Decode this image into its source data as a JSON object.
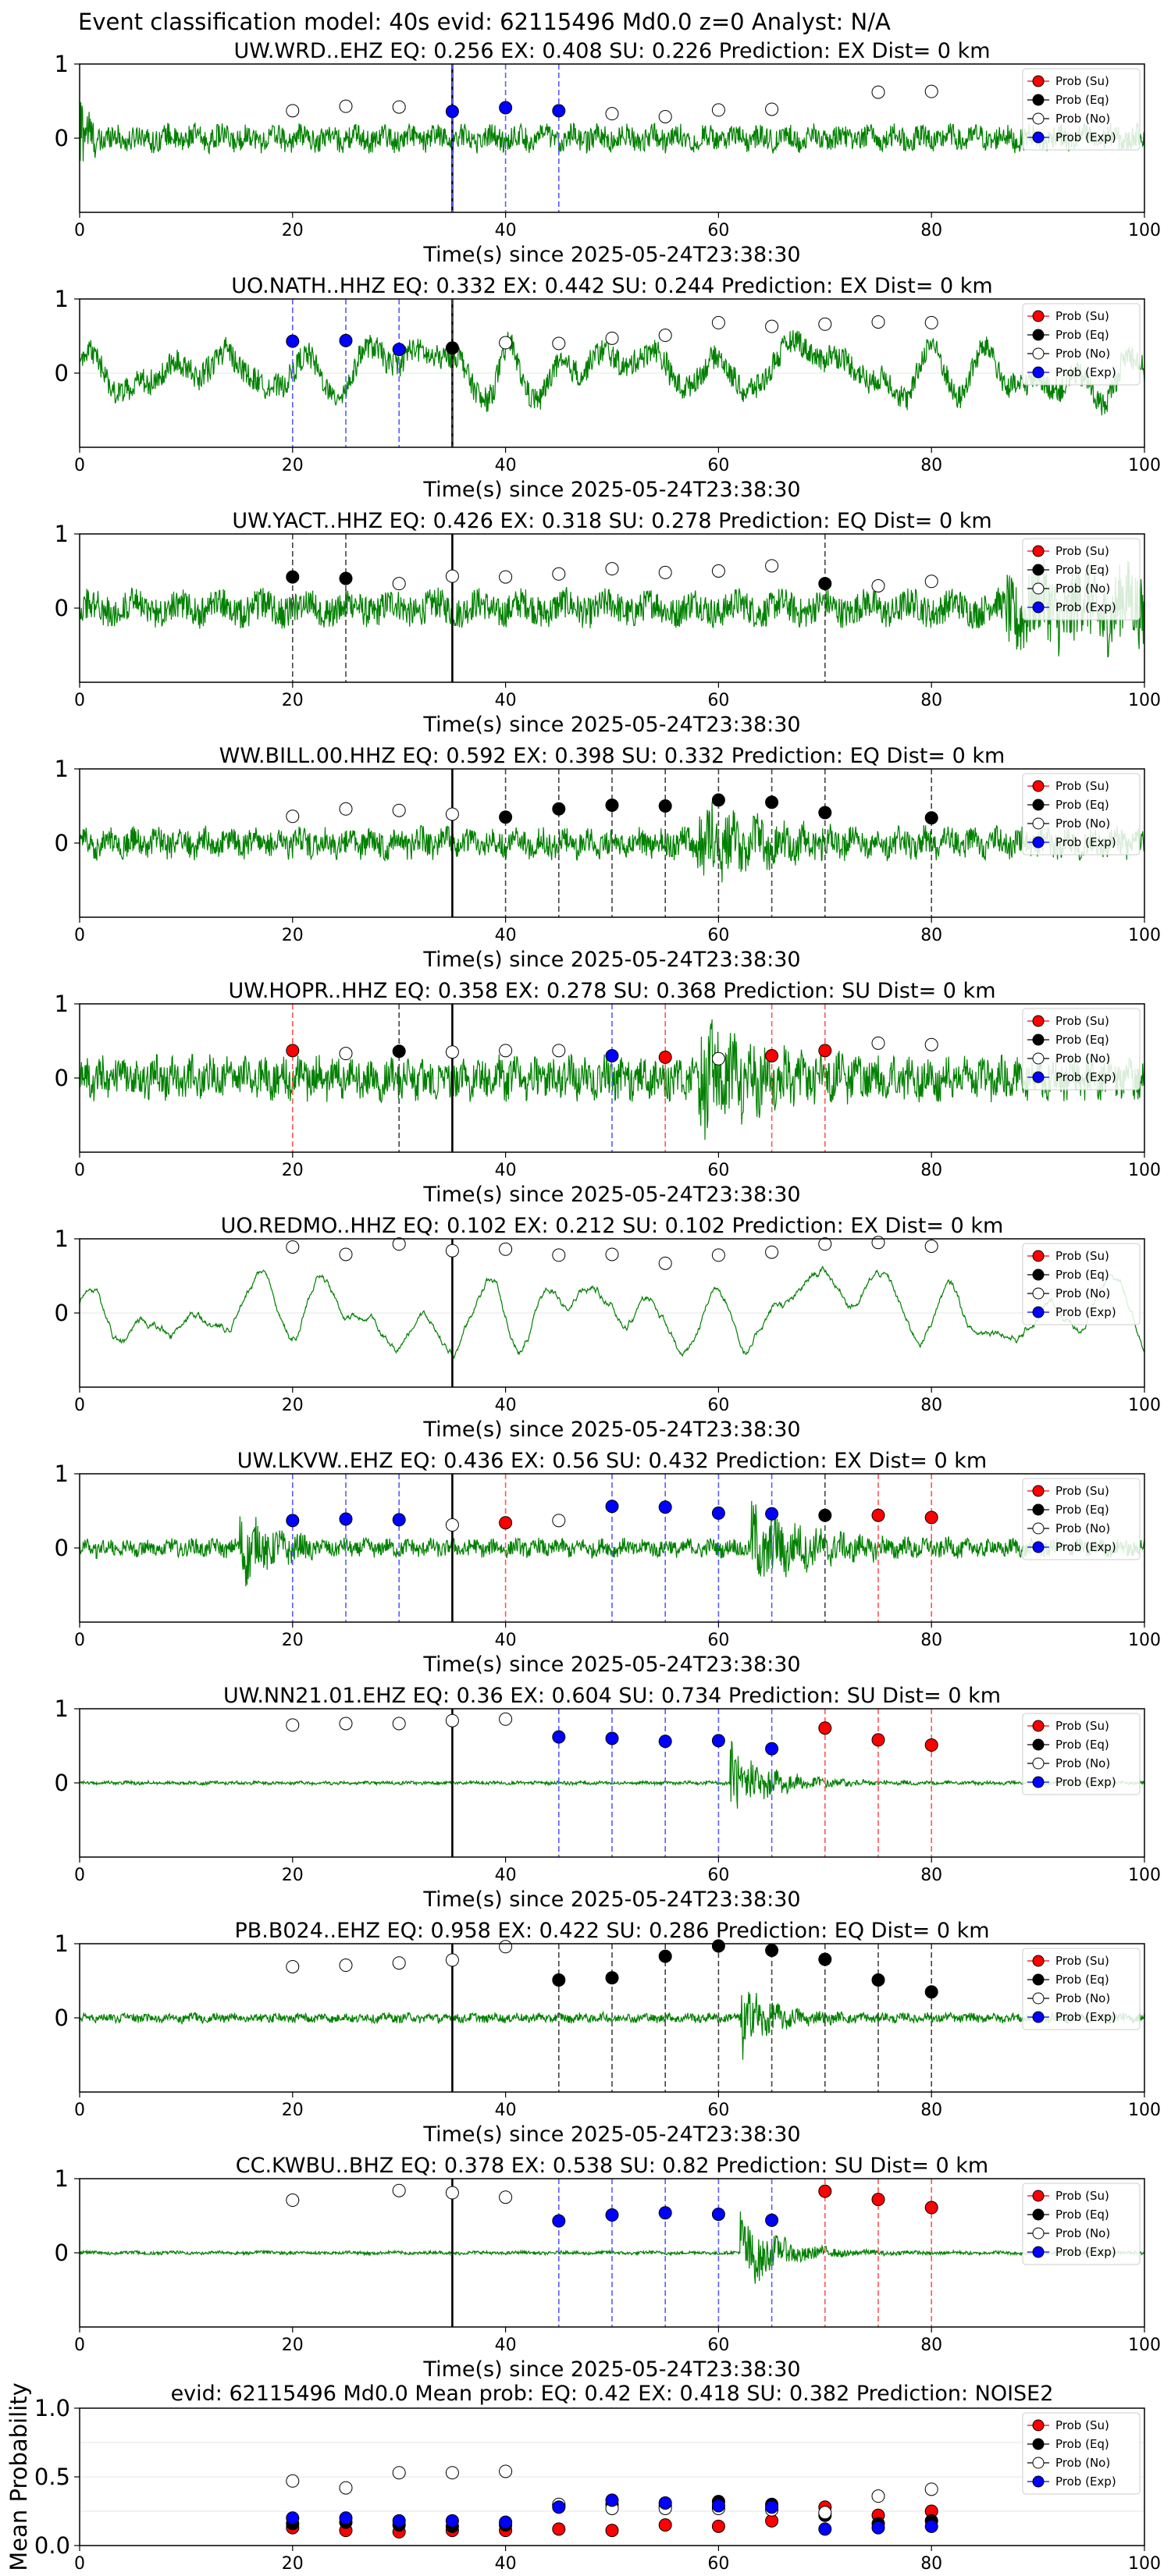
{
  "figure_title": "Event classification model: 40s evid: 62115496 Md0.0 z=0 Analyst: N/A",
  "legend": [
    "Prob (Su)",
    "Prob (Eq)",
    "Prob (No)",
    "Prob (Exp)"
  ],
  "colors": {
    "su": "#ff0000",
    "eq": "#000000",
    "no": "#ffffff",
    "exp": "#0000ff",
    "trace": "#008000"
  },
  "chart_data": [
    {
      "type": "line",
      "title": "UW.WRD..EHZ   EQ: 0.256  EX: 0.408  SU: 0.226   Prediction: EX    Dist= 0 km",
      "xlabel": "Time(s) since 2025-05-24T23:38:30",
      "xlim": [
        0,
        100
      ],
      "ylim": [
        -1,
        1
      ],
      "yticks": [
        0,
        1
      ],
      "xticks": [
        0,
        20,
        40,
        60,
        80,
        100
      ],
      "pick": 35,
      "amplitude": 0.22,
      "freq": 0.8,
      "onset": 0,
      "env": "decay",
      "points": [
        {
          "x": 20,
          "y": 0.37,
          "c": "no"
        },
        {
          "x": 25,
          "y": 0.43,
          "c": "no"
        },
        {
          "x": 30,
          "y": 0.42,
          "c": "no"
        },
        {
          "x": 35,
          "y": 0.36,
          "c": "exp"
        },
        {
          "x": 40,
          "y": 0.41,
          "c": "exp"
        },
        {
          "x": 45,
          "y": 0.37,
          "c": "exp"
        },
        {
          "x": 50,
          "y": 0.33,
          "c": "no"
        },
        {
          "x": 55,
          "y": 0.29,
          "c": "no"
        },
        {
          "x": 60,
          "y": 0.38,
          "c": "no"
        },
        {
          "x": 65,
          "y": 0.39,
          "c": "no"
        },
        {
          "x": 75,
          "y": 0.62,
          "c": "no"
        },
        {
          "x": 80,
          "y": 0.63,
          "c": "no"
        }
      ]
    },
    {
      "type": "line",
      "title": "UO.NATH..HHZ   EQ: 0.332  EX: 0.442  SU: 0.244   Prediction: EX    Dist= 0 km",
      "xlabel": "Time(s) since 2025-05-24T23:38:30",
      "xlim": [
        0,
        100
      ],
      "ylim": [
        -1,
        1
      ],
      "yticks": [
        0,
        1
      ],
      "xticks": [
        0,
        20,
        40,
        60,
        80,
        100
      ],
      "pick": 35,
      "amplitude": 0.6,
      "freq": 0.3,
      "onset": 0,
      "env": "flat",
      "points": [
        {
          "x": 20,
          "y": 0.43,
          "c": "exp"
        },
        {
          "x": 25,
          "y": 0.44,
          "c": "exp"
        },
        {
          "x": 30,
          "y": 0.32,
          "c": "exp"
        },
        {
          "x": 35,
          "y": 0.34,
          "c": "eq"
        },
        {
          "x": 40,
          "y": 0.41,
          "c": "no"
        },
        {
          "x": 45,
          "y": 0.4,
          "c": "no"
        },
        {
          "x": 50,
          "y": 0.47,
          "c": "no"
        },
        {
          "x": 55,
          "y": 0.51,
          "c": "no"
        },
        {
          "x": 60,
          "y": 0.68,
          "c": "no"
        },
        {
          "x": 65,
          "y": 0.63,
          "c": "no"
        },
        {
          "x": 70,
          "y": 0.66,
          "c": "no"
        },
        {
          "x": 75,
          "y": 0.69,
          "c": "no"
        },
        {
          "x": 80,
          "y": 0.68,
          "c": "no"
        }
      ]
    },
    {
      "type": "line",
      "title": "UW.YACT..HHZ   EQ: 0.426  EX: 0.318  SU: 0.278   Prediction: EQ    Dist= 0 km",
      "xlabel": "Time(s) since 2025-05-24T23:38:30",
      "xlim": [
        0,
        100
      ],
      "ylim": [
        -1,
        1
      ],
      "yticks": [
        0,
        1
      ],
      "xticks": [
        0,
        20,
        40,
        60,
        80,
        100
      ],
      "pick": 35,
      "amplitude": 0.3,
      "freq": 0.5,
      "onset": 0,
      "env": "tailburst",
      "points": [
        {
          "x": 20,
          "y": 0.42,
          "c": "eq"
        },
        {
          "x": 25,
          "y": 0.4,
          "c": "eq"
        },
        {
          "x": 30,
          "y": 0.33,
          "c": "no"
        },
        {
          "x": 35,
          "y": 0.43,
          "c": "no"
        },
        {
          "x": 40,
          "y": 0.42,
          "c": "no"
        },
        {
          "x": 45,
          "y": 0.46,
          "c": "no"
        },
        {
          "x": 50,
          "y": 0.53,
          "c": "no"
        },
        {
          "x": 55,
          "y": 0.48,
          "c": "no"
        },
        {
          "x": 60,
          "y": 0.5,
          "c": "no"
        },
        {
          "x": 65,
          "y": 0.57,
          "c": "no"
        },
        {
          "x": 70,
          "y": 0.33,
          "c": "eq"
        },
        {
          "x": 75,
          "y": 0.3,
          "c": "no"
        },
        {
          "x": 80,
          "y": 0.36,
          "c": "no"
        }
      ]
    },
    {
      "type": "line",
      "title": "WW.BILL.00.HHZ   EQ: 0.592  EX: 0.398  SU: 0.332   Prediction: EQ    Dist= 0 km",
      "xlabel": "Time(s) since 2025-05-24T23:38:30",
      "xlim": [
        0,
        100
      ],
      "ylim": [
        -1,
        1
      ],
      "yticks": [
        0,
        1
      ],
      "xticks": [
        0,
        20,
        40,
        60,
        80,
        100
      ],
      "pick": 35,
      "amplitude": 0.25,
      "freq": 0.9,
      "onset": 58,
      "env": "burst",
      "points": [
        {
          "x": 20,
          "y": 0.36,
          "c": "no"
        },
        {
          "x": 25,
          "y": 0.46,
          "c": "no"
        },
        {
          "x": 30,
          "y": 0.44,
          "c": "no"
        },
        {
          "x": 35,
          "y": 0.39,
          "c": "no"
        },
        {
          "x": 40,
          "y": 0.35,
          "c": "eq"
        },
        {
          "x": 45,
          "y": 0.46,
          "c": "eq"
        },
        {
          "x": 50,
          "y": 0.51,
          "c": "eq"
        },
        {
          "x": 55,
          "y": 0.5,
          "c": "eq"
        },
        {
          "x": 60,
          "y": 0.58,
          "c": "eq"
        },
        {
          "x": 65,
          "y": 0.55,
          "c": "eq"
        },
        {
          "x": 70,
          "y": 0.41,
          "c": "eq"
        },
        {
          "x": 80,
          "y": 0.34,
          "c": "eq"
        }
      ]
    },
    {
      "type": "line",
      "title": "UW.HOPR..HHZ   EQ: 0.358  EX: 0.278  SU: 0.368   Prediction: SU    Dist= 0 km",
      "xlabel": "Time(s) since 2025-05-24T23:38:30",
      "xlim": [
        0,
        100
      ],
      "ylim": [
        -1,
        1
      ],
      "yticks": [
        0,
        1
      ],
      "xticks": [
        0,
        20,
        40,
        60,
        80,
        100
      ],
      "pick": 35,
      "amplitude": 0.35,
      "freq": 1.2,
      "onset": 58,
      "env": "burst",
      "points": [
        {
          "x": 20,
          "y": 0.37,
          "c": "su"
        },
        {
          "x": 25,
          "y": 0.33,
          "c": "no"
        },
        {
          "x": 30,
          "y": 0.36,
          "c": "eq"
        },
        {
          "x": 35,
          "y": 0.35,
          "c": "no"
        },
        {
          "x": 40,
          "y": 0.37,
          "c": "no"
        },
        {
          "x": 45,
          "y": 0.37,
          "c": "no"
        },
        {
          "x": 50,
          "y": 0.3,
          "c": "exp"
        },
        {
          "x": 55,
          "y": 0.28,
          "c": "su"
        },
        {
          "x": 60,
          "y": 0.26,
          "c": "no"
        },
        {
          "x": 65,
          "y": 0.3,
          "c": "su"
        },
        {
          "x": 70,
          "y": 0.37,
          "c": "su"
        },
        {
          "x": 75,
          "y": 0.47,
          "c": "no"
        },
        {
          "x": 80,
          "y": 0.45,
          "c": "no"
        }
      ]
    },
    {
      "type": "line",
      "title": "UO.REDMO..HHZ   EQ: 0.102  EX: 0.212  SU: 0.102   Prediction: EX    Dist= 0 km",
      "xlabel": "Time(s) since 2025-05-24T23:38:30",
      "xlim": [
        0,
        100
      ],
      "ylim": [
        -1,
        1
      ],
      "yticks": [
        0,
        1
      ],
      "xticks": [
        0,
        20,
        40,
        60,
        80,
        100
      ],
      "pick": 35,
      "amplitude": 0.6,
      "freq": 0.25,
      "onset": 0,
      "env": "smooth",
      "points": [
        {
          "x": 20,
          "y": 0.89,
          "c": "no"
        },
        {
          "x": 25,
          "y": 0.79,
          "c": "no"
        },
        {
          "x": 30,
          "y": 0.93,
          "c": "no"
        },
        {
          "x": 35,
          "y": 0.84,
          "c": "no"
        },
        {
          "x": 40,
          "y": 0.86,
          "c": "no"
        },
        {
          "x": 45,
          "y": 0.78,
          "c": "no"
        },
        {
          "x": 50,
          "y": 0.79,
          "c": "no"
        },
        {
          "x": 55,
          "y": 0.67,
          "c": "no"
        },
        {
          "x": 60,
          "y": 0.78,
          "c": "no"
        },
        {
          "x": 65,
          "y": 0.82,
          "c": "no"
        },
        {
          "x": 70,
          "y": 0.93,
          "c": "no"
        },
        {
          "x": 75,
          "y": 0.95,
          "c": "no"
        },
        {
          "x": 80,
          "y": 0.9,
          "c": "no"
        }
      ]
    },
    {
      "type": "line",
      "title": "UW.LKVW..EHZ   EQ: 0.436  EX: 0.56  SU: 0.432   Prediction: EX    Dist= 0 km",
      "xlabel": "Time(s) since 2025-05-24T23:38:30",
      "xlim": [
        0,
        100
      ],
      "ylim": [
        -1,
        1
      ],
      "yticks": [
        0,
        1
      ],
      "xticks": [
        0,
        20,
        40,
        60,
        80,
        100
      ],
      "pick": 35,
      "amplitude": 0.15,
      "freq": 1.0,
      "onset": 15,
      "env": "twobursts",
      "points": [
        {
          "x": 20,
          "y": 0.37,
          "c": "exp"
        },
        {
          "x": 25,
          "y": 0.39,
          "c": "exp"
        },
        {
          "x": 30,
          "y": 0.38,
          "c": "exp"
        },
        {
          "x": 35,
          "y": 0.31,
          "c": "no"
        },
        {
          "x": 40,
          "y": 0.34,
          "c": "su"
        },
        {
          "x": 45,
          "y": 0.37,
          "c": "no"
        },
        {
          "x": 50,
          "y": 0.56,
          "c": "exp"
        },
        {
          "x": 55,
          "y": 0.55,
          "c": "exp"
        },
        {
          "x": 60,
          "y": 0.47,
          "c": "exp"
        },
        {
          "x": 65,
          "y": 0.46,
          "c": "exp"
        },
        {
          "x": 70,
          "y": 0.44,
          "c": "eq"
        },
        {
          "x": 75,
          "y": 0.44,
          "c": "su"
        },
        {
          "x": 80,
          "y": 0.41,
          "c": "su"
        }
      ]
    },
    {
      "type": "line",
      "title": "UW.NN21.01.EHZ   EQ: 0.36  EX: 0.604  SU: 0.734   Prediction: SU    Dist= 0 km",
      "xlabel": "Time(s) since 2025-05-24T23:38:30",
      "xlim": [
        0,
        100
      ],
      "ylim": [
        -1,
        1
      ],
      "yticks": [
        0,
        1
      ],
      "xticks": [
        0,
        20,
        40,
        60,
        80,
        100
      ],
      "pick": 35,
      "amplitude": 0.03,
      "freq": 1.0,
      "onset": 61,
      "env": "bigburst",
      "points": [
        {
          "x": 20,
          "y": 0.78,
          "c": "no"
        },
        {
          "x": 25,
          "y": 0.8,
          "c": "no"
        },
        {
          "x": 30,
          "y": 0.8,
          "c": "no"
        },
        {
          "x": 35,
          "y": 0.84,
          "c": "no"
        },
        {
          "x": 40,
          "y": 0.86,
          "c": "no"
        },
        {
          "x": 45,
          "y": 0.62,
          "c": "exp"
        },
        {
          "x": 50,
          "y": 0.6,
          "c": "exp"
        },
        {
          "x": 55,
          "y": 0.56,
          "c": "exp"
        },
        {
          "x": 60,
          "y": 0.57,
          "c": "exp"
        },
        {
          "x": 65,
          "y": 0.46,
          "c": "exp"
        },
        {
          "x": 70,
          "y": 0.74,
          "c": "su"
        },
        {
          "x": 75,
          "y": 0.58,
          "c": "su"
        },
        {
          "x": 80,
          "y": 0.51,
          "c": "su"
        }
      ]
    },
    {
      "type": "line",
      "title": "PB.B024..EHZ   EQ: 0.958  EX: 0.422  SU: 0.286   Prediction: EQ    Dist= 0 km",
      "xlabel": "Time(s) since 2025-05-24T23:38:30",
      "xlim": [
        0,
        100
      ],
      "ylim": [
        -1,
        1
      ],
      "yticks": [
        0,
        1
      ],
      "xticks": [
        0,
        20,
        40,
        60,
        80,
        100
      ],
      "pick": 35,
      "amplitude": 0.08,
      "freq": 1.0,
      "onset": 62,
      "env": "midburst",
      "points": [
        {
          "x": 20,
          "y": 0.69,
          "c": "no"
        },
        {
          "x": 25,
          "y": 0.71,
          "c": "no"
        },
        {
          "x": 30,
          "y": 0.74,
          "c": "no"
        },
        {
          "x": 35,
          "y": 0.78,
          "c": "no"
        },
        {
          "x": 40,
          "y": 0.96,
          "c": "no"
        },
        {
          "x": 45,
          "y": 0.51,
          "c": "eq"
        },
        {
          "x": 50,
          "y": 0.54,
          "c": "eq"
        },
        {
          "x": 55,
          "y": 0.83,
          "c": "eq"
        },
        {
          "x": 60,
          "y": 0.97,
          "c": "eq"
        },
        {
          "x": 65,
          "y": 0.91,
          "c": "eq"
        },
        {
          "x": 70,
          "y": 0.79,
          "c": "eq"
        },
        {
          "x": 75,
          "y": 0.51,
          "c": "eq"
        },
        {
          "x": 80,
          "y": 0.35,
          "c": "eq"
        }
      ]
    },
    {
      "type": "line",
      "title": "CC.KWBU..BHZ   EQ: 0.378  EX: 0.538  SU: 0.82   Prediction: SU    Dist= 0 km",
      "xlabel": "Time(s) since 2025-05-24T23:38:30",
      "xlim": [
        0,
        100
      ],
      "ylim": [
        -1,
        1
      ],
      "yticks": [
        0,
        1
      ],
      "xticks": [
        0,
        20,
        40,
        60,
        80,
        100
      ],
      "pick": 35,
      "amplitude": 0.03,
      "freq": 0.5,
      "onset": 62,
      "env": "bigburst",
      "points": [
        {
          "x": 20,
          "y": 0.71,
          "c": "no"
        },
        {
          "x": 30,
          "y": 0.84,
          "c": "no"
        },
        {
          "x": 35,
          "y": 0.81,
          "c": "no"
        },
        {
          "x": 40,
          "y": 0.75,
          "c": "no"
        },
        {
          "x": 45,
          "y": 0.43,
          "c": "exp"
        },
        {
          "x": 50,
          "y": 0.51,
          "c": "exp"
        },
        {
          "x": 55,
          "y": 0.54,
          "c": "exp"
        },
        {
          "x": 60,
          "y": 0.52,
          "c": "exp"
        },
        {
          "x": 65,
          "y": 0.44,
          "c": "exp"
        },
        {
          "x": 70,
          "y": 0.83,
          "c": "su"
        },
        {
          "x": 75,
          "y": 0.72,
          "c": "su"
        },
        {
          "x": 80,
          "y": 0.61,
          "c": "su"
        }
      ]
    },
    {
      "type": "scatter",
      "title": "evid: 62115496  Md0.0   Mean prob:   EQ: 0.42  EX: 0.418  SU: 0.382   Prediction: NOISE2",
      "xlabel": "",
      "ylabel": "Mean Probability",
      "xlim": [
        0,
        100
      ],
      "ylim": [
        0,
        1
      ],
      "yticks": [
        0.0,
        0.5,
        1.0
      ],
      "xticks": [
        0,
        20,
        40,
        60,
        80,
        100
      ],
      "x": [
        20,
        25,
        30,
        35,
        40,
        45,
        50,
        55,
        60,
        65,
        70,
        75,
        80
      ],
      "series": [
        {
          "name": "Prob (Su)",
          "c": "su",
          "values": [
            0.13,
            0.11,
            0.1,
            0.11,
            0.11,
            0.12,
            0.11,
            0.15,
            0.14,
            0.18,
            0.28,
            0.22,
            0.25
          ]
        },
        {
          "name": "Prob (Eq)",
          "c": "eq",
          "values": [
            0.16,
            0.17,
            0.15,
            0.14,
            0.15,
            0.29,
            0.3,
            0.29,
            0.32,
            0.3,
            0.22,
            0.16,
            0.18
          ]
        },
        {
          "name": "Prob (No)",
          "c": "no",
          "values": [
            0.47,
            0.42,
            0.53,
            0.53,
            0.54,
            0.3,
            0.27,
            0.27,
            0.27,
            0.26,
            0.24,
            0.36,
            0.41
          ]
        },
        {
          "name": "Prob (Exp)",
          "c": "exp",
          "values": [
            0.2,
            0.2,
            0.18,
            0.18,
            0.17,
            0.28,
            0.33,
            0.31,
            0.29,
            0.28,
            0.12,
            0.13,
            0.14
          ]
        }
      ]
    }
  ]
}
